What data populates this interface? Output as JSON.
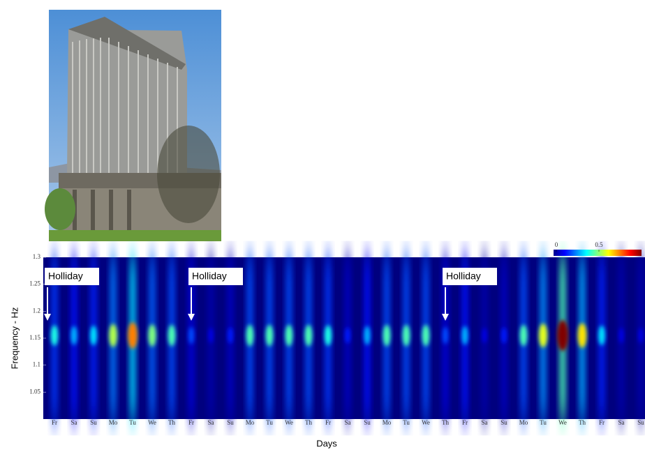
{
  "chart_data": {
    "type": "heatmap",
    "ylabel": "Frequency - Hz",
    "xlabel": "Days",
    "categories": [
      "Fr",
      "Sa",
      "Su",
      "Mo",
      "Tu",
      "We",
      "Th",
      "Fr",
      "Sa",
      "Su",
      "Mo",
      "Tu",
      "We",
      "Th",
      "Fr",
      "Sa",
      "Su",
      "Mo",
      "Tu",
      "We",
      "Th",
      "Fr",
      "Sa",
      "Su",
      "Mo",
      "Tu",
      "We",
      "Th",
      "Fr",
      "Sa",
      "Su"
    ],
    "values": [
      0.4,
      0.3,
      0.35,
      0.55,
      0.75,
      0.5,
      0.45,
      0.2,
      0.1,
      0.15,
      0.45,
      0.45,
      0.45,
      0.45,
      0.4,
      0.15,
      0.3,
      0.45,
      0.45,
      0.45,
      0.2,
      0.3,
      0.1,
      0.15,
      0.45,
      0.6,
      1.0,
      0.65,
      0.35,
      0.1,
      0.1
    ],
    "peak_frequency": 1.155,
    "ylim": [
      1.0,
      1.3
    ],
    "yticks": [
      1.05,
      1.1,
      1.15,
      1.2,
      1.25,
      1.3
    ],
    "clim": [
      0,
      1
    ],
    "cticks": [
      0,
      0.5
    ],
    "annotations": [
      {
        "text": "Holliday",
        "day": 0
      },
      {
        "text": "Holliday",
        "day": 7
      },
      {
        "text": "Holliday",
        "day": 20
      }
    ]
  }
}
